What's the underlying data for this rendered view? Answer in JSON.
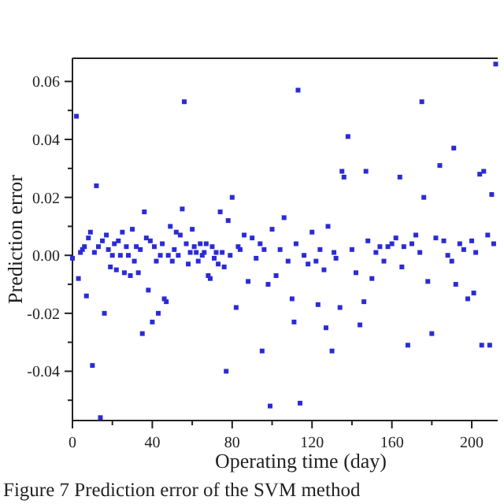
{
  "chart_data": {
    "type": "scatter",
    "title": "Figure 7  Prediction error of the SVM method",
    "xlabel": "Operating time (day)",
    "ylabel": "Prediction error",
    "marker": "square",
    "grid": false,
    "xlim": [
      0,
      213
    ],
    "ylim": [
      -0.057,
      0.068
    ],
    "xticks": [
      0,
      {
        "value": 20,
        "label": null
      },
      40,
      {
        "value": 60,
        "label": null
      },
      80,
      {
        "value": 100,
        "label": null
      },
      120,
      {
        "value": 140,
        "label": null
      },
      160,
      {
        "value": 180,
        "label": null
      },
      200
    ],
    "yticks": [
      -0.04,
      {
        "value": -0.05,
        "label": null
      },
      {
        "value": -0.03,
        "label": null
      },
      -0.02,
      {
        "value": -0.01,
        "label": null
      },
      {
        "value": 0,
        "label": "0.00"
      },
      {
        "value": 0.01,
        "label": null
      },
      0.02,
      {
        "value": 0.03,
        "label": null
      },
      0.04,
      {
        "value": 0.05,
        "label": null
      },
      0.06
    ],
    "series": [
      {
        "color": "#2b2bd6",
        "x": [
          0,
          2,
          3,
          4,
          5,
          6,
          7,
          8,
          9,
          10,
          11,
          12,
          13,
          14,
          15,
          16,
          17,
          18,
          19,
          20,
          21,
          22,
          23,
          24,
          25,
          26,
          27,
          28,
          29,
          30,
          31,
          32,
          33,
          34,
          35,
          36,
          37,
          38,
          39,
          40,
          41,
          42,
          43,
          44,
          45,
          46,
          47,
          48,
          49,
          50,
          51,
          52,
          53,
          54,
          55,
          56,
          57,
          58,
          59,
          60,
          61,
          62,
          63,
          64,
          65,
          66,
          67,
          68,
          69,
          70,
          71,
          72,
          73,
          74,
          75,
          76,
          77,
          78,
          79,
          80,
          82,
          83,
          84,
          86,
          88,
          90,
          92,
          94,
          95,
          96,
          98,
          99,
          100,
          102,
          104,
          106,
          108,
          110,
          111,
          112,
          113,
          114,
          116,
          118,
          120,
          122,
          123,
          124,
          126,
          127,
          128,
          130,
          131,
          132,
          134,
          135,
          136,
          138,
          140,
          142,
          144,
          146,
          147,
          148,
          150,
          152,
          154,
          156,
          158,
          160,
          162,
          164,
          165,
          166,
          168,
          170,
          172,
          174,
          175,
          176,
          178,
          180,
          182,
          184,
          186,
          188,
          190,
          191,
          192,
          194,
          196,
          198,
          200,
          201,
          202,
          204,
          205,
          206,
          208,
          209,
          210,
          211,
          212
        ],
        "values": [
          -0.001,
          0.048,
          -0.008,
          0.001,
          0.002,
          0.003,
          -0.014,
          0.006,
          0.008,
          -0.038,
          0.001,
          0.024,
          0.003,
          -0.056,
          0.005,
          -0.02,
          0.007,
          0.002,
          -0.004,
          0.0,
          0.004,
          -0.005,
          0.005,
          0.0,
          0.008,
          -0.006,
          0.003,
          0.0,
          -0.007,
          0.009,
          -0.002,
          0.003,
          -0.006,
          0.002,
          -0.027,
          0.015,
          0.006,
          -0.012,
          0.005,
          -0.023,
          0.003,
          -0.002,
          -0.02,
          0.0,
          0.004,
          -0.015,
          -0.016,
          0.0,
          0.01,
          -0.002,
          0.002,
          0.008,
          0.0,
          0.007,
          0.016,
          0.053,
          0.004,
          -0.003,
          0.001,
          0.009,
          0.003,
          0.001,
          -0.002,
          0.004,
          0.0,
          0.001,
          0.004,
          -0.007,
          -0.008,
          0.003,
          -0.001,
          0.001,
          -0.003,
          0.015,
          0.001,
          -0.004,
          -0.04,
          0.012,
          0.0,
          0.02,
          -0.018,
          0.003,
          0.002,
          0.007,
          -0.009,
          0.006,
          -0.001,
          0.004,
          -0.033,
          0.002,
          -0.01,
          -0.052,
          0.009,
          -0.007,
          0.002,
          0.013,
          -0.002,
          -0.015,
          -0.023,
          0.004,
          0.057,
          -0.051,
          0.0,
          -0.003,
          0.008,
          -0.002,
          -0.017,
          0.002,
          -0.005,
          -0.025,
          0.01,
          -0.033,
          0.001,
          -0.001,
          -0.018,
          0.029,
          0.027,
          0.041,
          0.002,
          -0.006,
          -0.024,
          -0.016,
          0.029,
          0.005,
          -0.008,
          0.001,
          0.003,
          -0.002,
          0.003,
          0.004,
          0.006,
          0.027,
          -0.004,
          0.003,
          -0.031,
          0.004,
          0.007,
          0.001,
          0.053,
          0.02,
          -0.009,
          -0.027,
          0.006,
          0.031,
          0.005,
          0.0,
          -0.002,
          0.037,
          -0.01,
          0.004,
          0.002,
          -0.015,
          0.005,
          -0.013,
          0.001,
          0.028,
          -0.031,
          0.029,
          0.007,
          -0.031,
          0.021,
          0.004,
          0.066
        ]
      }
    ]
  }
}
